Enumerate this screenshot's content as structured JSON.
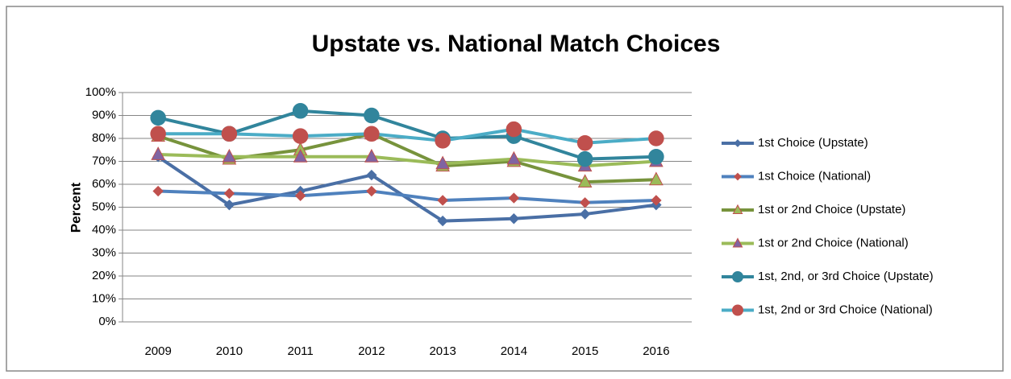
{
  "chart_data": {
    "type": "line",
    "title": "Upstate vs. National Match Choices",
    "y_label": "Percent",
    "categories": [
      "2009",
      "2010",
      "2011",
      "2012",
      "2013",
      "2014",
      "2015",
      "2016"
    ],
    "series": [
      {
        "name": "1st Choice (Upstate)",
        "color": "#4a6fa5",
        "marker": "diamond",
        "marker_color": "#4a6fa5",
        "values": [
          72,
          51,
          57,
          64,
          44,
          45,
          47,
          51
        ]
      },
      {
        "name": "1st Choice (National)",
        "color": "#4f81bd",
        "marker": "diamond",
        "marker_color": "#c0504d",
        "values": [
          57,
          56,
          55,
          57,
          53,
          54,
          52,
          53
        ]
      },
      {
        "name": "1st or 2nd Choice (Upstate)",
        "color": "#77933c",
        "marker": "triangle",
        "marker_color": "#9bbb59",
        "values": [
          81,
          71,
          75,
          82,
          68,
          70,
          61,
          62
        ]
      },
      {
        "name": "1st or 2nd Choice (National)",
        "color": "#9bbb59",
        "marker": "triangle",
        "marker_color": "#8064a2",
        "values": [
          73,
          72,
          72,
          72,
          69,
          71,
          68,
          70
        ]
      },
      {
        "name": "1st, 2nd, or 3rd Choice (Upstate)",
        "color": "#31859c",
        "marker": "circle",
        "marker_color": "#31859c",
        "values": [
          89,
          82,
          92,
          90,
          80,
          81,
          71,
          72
        ]
      },
      {
        "name": "1st, 2nd or 3rd Choice (National)",
        "color": "#4bacc6",
        "marker": "circle",
        "marker_color": "#c0504d",
        "values": [
          82,
          82,
          81,
          82,
          79,
          84,
          78,
          80
        ]
      }
    ],
    "ylim": [
      0,
      100
    ],
    "yticks": [
      {
        "value": 0,
        "label": "0%"
      },
      {
        "value": 10,
        "label": "10%"
      },
      {
        "value": 20,
        "label": "20%"
      },
      {
        "value": 30,
        "label": "30%"
      },
      {
        "value": 40,
        "label": "40%"
      },
      {
        "value": 50,
        "label": "50%"
      },
      {
        "value": 60,
        "label": "60%"
      },
      {
        "value": 70,
        "label": "70%"
      },
      {
        "value": 80,
        "label": "80%"
      },
      {
        "value": 90,
        "label": "90%"
      },
      {
        "value": 100,
        "label": "100%"
      }
    ],
    "grid": true,
    "legend": "right"
  }
}
